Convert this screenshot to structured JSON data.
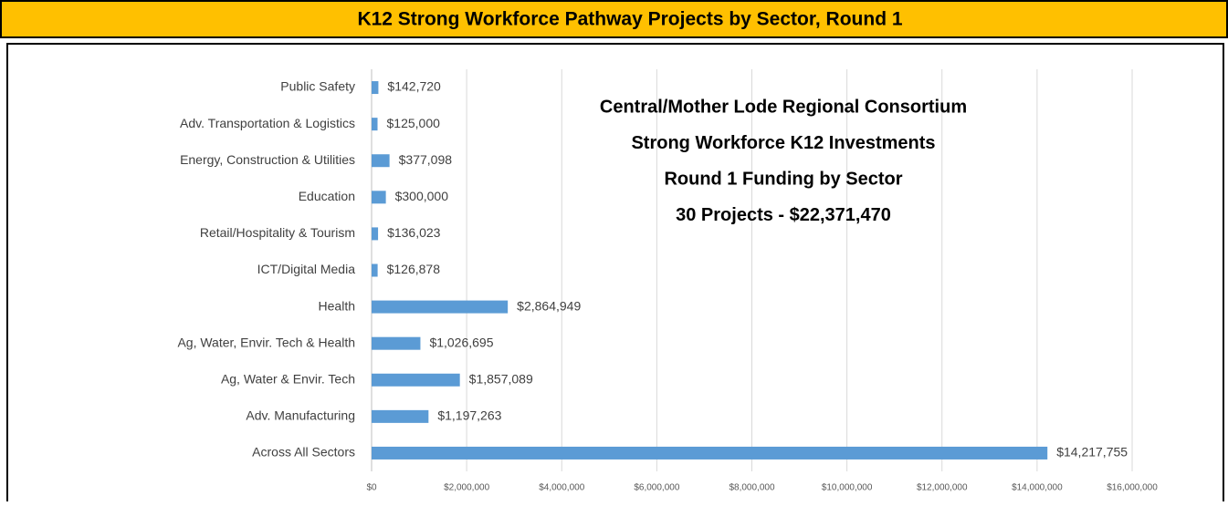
{
  "header": {
    "title": "K12 Strong Workforce Pathway Projects by Sector, Round 1"
  },
  "chart_data": {
    "type": "hbar",
    "annotation": [
      "Central/Mother Lode Regional Consortium",
      "Strong Workforce K12 Investments",
      "Round 1 Funding by Sector",
      "30 Projects - $22,371,470"
    ],
    "categories": [
      "Public Safety",
      "Adv. Transportation & Logistics",
      "Energy, Construction & Utilities",
      "Education",
      "Retail/Hospitality & Tourism",
      "ICT/Digital Media",
      "Health",
      "Ag, Water, Envir. Tech & Health",
      "Ag, Water & Envir. Tech",
      "Adv. Manufacturing",
      "Across All Sectors"
    ],
    "values": [
      142720,
      125000,
      377098,
      300000,
      136023,
      126878,
      2864949,
      1026695,
      1857089,
      1197263,
      14217755
    ],
    "value_labels": [
      "$142,720",
      "$125,000",
      "$377,098",
      "$300,000",
      "$136,023",
      "$126,878",
      "$2,864,949",
      "$1,026,695",
      "$1,857,089",
      "$1,197,263",
      "$14,217,755"
    ],
    "color": "#5b9bd5",
    "xlim": [
      0,
      16000000
    ],
    "xticks": [
      {
        "value": 0,
        "label": "$0"
      },
      {
        "value": 2000000,
        "label": "$2,000,000"
      },
      {
        "value": 4000000,
        "label": "$4,000,000"
      },
      {
        "value": 6000000,
        "label": "$6,000,000"
      },
      {
        "value": 8000000,
        "label": "$8,000,000"
      },
      {
        "value": 10000000,
        "label": "$10,000,000"
      },
      {
        "value": 12000000,
        "label": "$12,000,000"
      },
      {
        "value": 14000000,
        "label": "$14,000,000"
      },
      {
        "value": 16000000,
        "label": "$16,000,000"
      }
    ],
    "grid": true
  }
}
